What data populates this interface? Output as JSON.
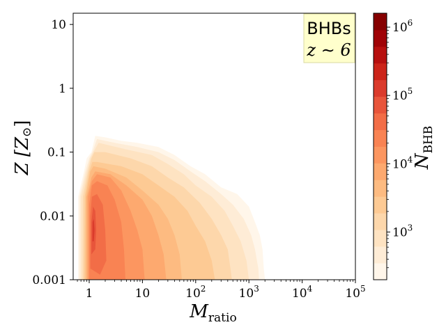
{
  "chart_data": {
    "type": "heatmap",
    "xlabel": "M",
    "xlabel_sub": "ratio",
    "ylabel": "Z [Z",
    "ylabel_sun": "⊙",
    "ylabel_close": "]",
    "x_scale": "log",
    "y_scale": "log",
    "xlim": [
      0.5,
      100000
    ],
    "ylim": [
      0.001,
      15
    ],
    "grid": false,
    "x_ticks": [
      {
        "value": 1,
        "base": "1",
        "exp": ""
      },
      {
        "value": 10,
        "base": "10",
        "exp": ""
      },
      {
        "value": 100,
        "base": "10",
        "exp": "2"
      },
      {
        "value": 1000,
        "base": "10",
        "exp": "3"
      },
      {
        "value": 10000,
        "base": "10",
        "exp": "4"
      },
      {
        "value": 100000,
        "base": "10",
        "exp": "5"
      }
    ],
    "y_ticks": [
      {
        "value": 0.001,
        "label": "0.001"
      },
      {
        "value": 0.01,
        "label": "0.01"
      },
      {
        "value": 0.1,
        "label": "0.1"
      },
      {
        "value": 1,
        "label": "1"
      },
      {
        "value": 10,
        "label": "10"
      }
    ],
    "annotation": {
      "line1": "BHBs",
      "line2": "z ∼ 6",
      "bg": "#ffffcc",
      "border": "#d8d8a0",
      "position": "top-right"
    },
    "colorbar": {
      "label": "N",
      "label_sub": "BHB",
      "scale": "log",
      "range": [
        200,
        1600000
      ],
      "ticks": [
        {
          "value": 1000,
          "base": "10",
          "exp": "3"
        },
        {
          "value": 10000,
          "base": "10",
          "exp": "4"
        },
        {
          "value": 100000,
          "base": "10",
          "exp": "5"
        },
        {
          "value": 1000000,
          "base": "10",
          "exp": "6"
        }
      ],
      "colors": [
        "#fff6ea",
        "#feecd6",
        "#fee3c2",
        "#fdd7ab",
        "#fdca94",
        "#fdbb81",
        "#fda96f",
        "#fc9660",
        "#f98353",
        "#f26d47",
        "#e8553b",
        "#db3b2c",
        "#cc2419",
        "#b7100f",
        "#a00307",
        "#860000"
      ]
    },
    "contour_levels": [
      {
        "level": 200,
        "color": "#fff6ea",
        "boundary": [
          [
            0.62,
            0.001
          ],
          [
            0.62,
            0.02
          ],
          [
            0.8,
            0.05
          ],
          [
            0.9,
            0.08
          ],
          [
            1.1,
            0.1
          ],
          [
            1.3,
            0.18
          ],
          [
            2,
            0.17
          ],
          [
            4,
            0.15
          ],
          [
            8,
            0.14
          ],
          [
            20,
            0.12
          ],
          [
            40,
            0.09
          ],
          [
            80,
            0.06
          ],
          [
            150,
            0.045
          ],
          [
            300,
            0.028
          ],
          [
            600,
            0.022
          ],
          [
            1000,
            0.014
          ],
          [
            1300,
            0.008
          ],
          [
            1600,
            0.005
          ],
          [
            1800,
            0.003
          ],
          [
            1900,
            0.0015
          ],
          [
            2000,
            0.001
          ]
        ]
      },
      {
        "level": 400,
        "color": "#feecd6",
        "boundary": [
          [
            0.65,
            0.001
          ],
          [
            0.66,
            0.02
          ],
          [
            0.85,
            0.05
          ],
          [
            1.0,
            0.08
          ],
          [
            1.15,
            0.1
          ],
          [
            1.4,
            0.16
          ],
          [
            3,
            0.14
          ],
          [
            8,
            0.12
          ],
          [
            20,
            0.1
          ],
          [
            40,
            0.075
          ],
          [
            80,
            0.05
          ],
          [
            150,
            0.035
          ],
          [
            300,
            0.022
          ],
          [
            500,
            0.015
          ],
          [
            800,
            0.009
          ],
          [
            1100,
            0.005
          ],
          [
            1300,
            0.003
          ],
          [
            1500,
            0.0015
          ],
          [
            1550,
            0.001
          ]
        ]
      },
      {
        "level": 800,
        "color": "#fee3c2",
        "boundary": [
          [
            0.7,
            0.001
          ],
          [
            0.7,
            0.02
          ],
          [
            0.9,
            0.05
          ],
          [
            1.05,
            0.08
          ],
          [
            1.2,
            0.1
          ],
          [
            1.5,
            0.14
          ],
          [
            5,
            0.11
          ],
          [
            15,
            0.09
          ],
          [
            30,
            0.065
          ],
          [
            60,
            0.045
          ],
          [
            100,
            0.03
          ],
          [
            200,
            0.02
          ],
          [
            350,
            0.012
          ],
          [
            500,
            0.007
          ],
          [
            700,
            0.004
          ],
          [
            900,
            0.002
          ],
          [
            1000,
            0.001
          ]
        ]
      },
      {
        "level": 1500,
        "color": "#fdd7ab",
        "boundary": [
          [
            0.75,
            0.001
          ],
          [
            0.76,
            0.02
          ],
          [
            0.95,
            0.05
          ],
          [
            1.1,
            0.08
          ],
          [
            1.25,
            0.1
          ],
          [
            2,
            0.1
          ],
          [
            6,
            0.08
          ],
          [
            15,
            0.06
          ],
          [
            30,
            0.04
          ],
          [
            60,
            0.028
          ],
          [
            120,
            0.016
          ],
          [
            200,
            0.009
          ],
          [
            300,
            0.005
          ],
          [
            400,
            0.003
          ],
          [
            450,
            0.0015
          ],
          [
            480,
            0.001
          ]
        ]
      },
      {
        "level": 3000,
        "color": "#fdca94",
        "boundary": [
          [
            0.8,
            0.001
          ],
          [
            0.82,
            0.02
          ],
          [
            1.0,
            0.05
          ],
          [
            1.15,
            0.07
          ],
          [
            1.4,
            0.07
          ],
          [
            4,
            0.06
          ],
          [
            10,
            0.045
          ],
          [
            20,
            0.03
          ],
          [
            40,
            0.02
          ],
          [
            70,
            0.012
          ],
          [
            100,
            0.007
          ],
          [
            150,
            0.004
          ],
          [
            200,
            0.002
          ],
          [
            230,
            0.001
          ]
        ]
      },
      {
        "level": 6000,
        "color": "#fdbb81",
        "boundary": [
          [
            0.85,
            0.001
          ],
          [
            0.86,
            0.02
          ],
          [
            1.05,
            0.05
          ],
          [
            1.2,
            0.06
          ],
          [
            2,
            0.055
          ],
          [
            5,
            0.04
          ],
          [
            10,
            0.025
          ],
          [
            20,
            0.015
          ],
          [
            30,
            0.009
          ],
          [
            40,
            0.005
          ],
          [
            50,
            0.0025
          ],
          [
            55,
            0.001
          ]
        ]
      },
      {
        "level": 12000,
        "color": "#fda96f",
        "boundary": [
          [
            0.9,
            0.001
          ],
          [
            0.9,
            0.02
          ],
          [
            1.1,
            0.04
          ],
          [
            1.3,
            0.05
          ],
          [
            2.5,
            0.045
          ],
          [
            5,
            0.03
          ],
          [
            10,
            0.018
          ],
          [
            15,
            0.01
          ],
          [
            20,
            0.005
          ],
          [
            25,
            0.0025
          ],
          [
            28,
            0.001
          ]
        ]
      },
      {
        "level": 25000,
        "color": "#fc9660",
        "boundary": [
          [
            0.95,
            0.001
          ],
          [
            0.95,
            0.02
          ],
          [
            1.12,
            0.035
          ],
          [
            1.4,
            0.045
          ],
          [
            2.5,
            0.04
          ],
          [
            4,
            0.025
          ],
          [
            6,
            0.012
          ],
          [
            8,
            0.006
          ],
          [
            10,
            0.003
          ],
          [
            11,
            0.001
          ]
        ]
      },
      {
        "level": 50000,
        "color": "#f98353",
        "boundary": [
          [
            1.0,
            0.001
          ],
          [
            1.0,
            0.015
          ],
          [
            1.12,
            0.03
          ],
          [
            1.4,
            0.035
          ],
          [
            2.2,
            0.03
          ],
          [
            3,
            0.018
          ],
          [
            4,
            0.008
          ],
          [
            4.5,
            0.003
          ],
          [
            4.8,
            0.001
          ]
        ]
      },
      {
        "level": 100000,
        "color": "#f26d47",
        "boundary": [
          [
            1.05,
            0.0015
          ],
          [
            1.05,
            0.01
          ],
          [
            1.12,
            0.02
          ],
          [
            1.4,
            0.022
          ],
          [
            1.8,
            0.015
          ],
          [
            2,
            0.006
          ],
          [
            2.1,
            0.002
          ],
          [
            1.6,
            0.0012
          ]
        ]
      },
      {
        "level": 200000,
        "color": "#e8553b",
        "boundary": [
          [
            1.1,
            0.0025
          ],
          [
            1.1,
            0.008
          ],
          [
            1.18,
            0.014
          ],
          [
            1.3,
            0.012
          ],
          [
            1.35,
            0.006
          ],
          [
            1.3,
            0.003
          ]
        ]
      },
      {
        "level": 400000,
        "color": "#db3b2c",
        "boundary": [
          [
            1.15,
            0.004
          ],
          [
            1.16,
            0.008
          ],
          [
            1.22,
            0.009
          ],
          [
            1.26,
            0.006
          ],
          [
            1.22,
            0.004
          ]
        ]
      }
    ]
  }
}
